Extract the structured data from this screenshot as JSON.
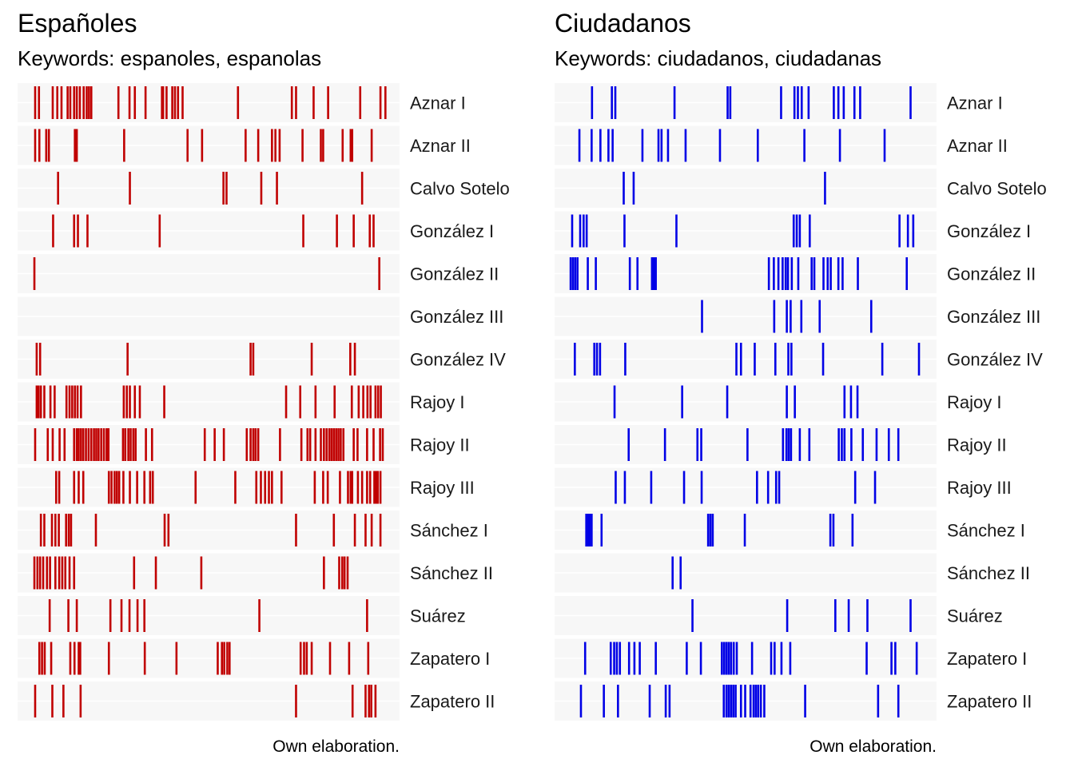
{
  "chart_data": [
    {
      "type": "barcode",
      "title": "Españoles",
      "subtitle": "Keywords: espanoles, espanolas",
      "caption": "Own elaboration.",
      "color": "#c00000",
      "xlim": [
        0,
        1
      ],
      "rows": [
        {
          "label": "Aznar I",
          "positions": [
            0.046,
            0.056,
            0.092,
            0.104,
            0.115,
            0.131,
            0.138,
            0.148,
            0.155,
            0.163,
            0.173,
            0.181,
            0.187,
            0.193,
            0.264,
            0.293,
            0.307,
            0.335,
            0.378,
            0.381,
            0.39,
            0.405,
            0.412,
            0.42,
            0.432,
            0.577,
            0.718,
            0.729,
            0.775,
            0.813,
            0.897,
            0.95,
            0.963
          ]
        },
        {
          "label": "Aznar II",
          "positions": [
            0.046,
            0.057,
            0.075,
            0.082,
            0.15,
            0.155,
            0.279,
            0.445,
            0.483,
            0.597,
            0.63,
            0.666,
            0.675,
            0.686,
            0.746,
            0.794,
            0.8,
            0.851,
            0.872,
            0.876,
            0.927
          ]
        },
        {
          "label": "Calvo Sotelo",
          "positions": [
            0.106,
            0.294,
            0.539,
            0.547,
            0.638,
            0.679,
            0.902
          ]
        },
        {
          "label": "González I",
          "positions": [
            0.093,
            0.148,
            0.158,
            0.183,
            0.372,
            0.748,
            0.836,
            0.88,
            0.922,
            0.932
          ]
        },
        {
          "label": "González II",
          "positions": [
            0.044,
            0.947
          ]
        },
        {
          "label": "González III",
          "positions": []
        },
        {
          "label": "González IV",
          "positions": [
            0.05,
            0.059,
            0.288,
            0.61,
            0.617,
            0.77,
            0.871,
            0.883
          ]
        },
        {
          "label": "Rajoy I",
          "positions": [
            0.05,
            0.055,
            0.061,
            0.07,
            0.086,
            0.097,
            0.128,
            0.136,
            0.143,
            0.15,
            0.157,
            0.166,
            0.278,
            0.286,
            0.294,
            0.307,
            0.32,
            0.384,
            0.703,
            0.74,
            0.78,
            0.83,
            0.875,
            0.893,
            0.905,
            0.916,
            0.924,
            0.937,
            0.944,
            0.951
          ]
        },
        {
          "label": "Rajoy II",
          "positions": [
            0.046,
            0.079,
            0.092,
            0.11,
            0.123,
            0.148,
            0.155,
            0.16,
            0.166,
            0.172,
            0.179,
            0.186,
            0.193,
            0.2,
            0.206,
            0.212,
            0.219,
            0.226,
            0.233,
            0.238,
            0.276,
            0.282,
            0.29,
            0.296,
            0.303,
            0.309,
            0.336,
            0.352,
            0.49,
            0.516,
            0.54,
            0.6,
            0.61,
            0.617,
            0.623,
            0.63,
            0.687,
            0.743,
            0.759,
            0.766,
            0.78,
            0.794,
            0.802,
            0.809,
            0.816,
            0.822,
            0.828,
            0.834,
            0.84,
            0.846,
            0.853,
            0.88,
            0.89,
            0.915,
            0.932,
            0.949,
            0.956
          ]
        },
        {
          "label": "Rajoy III",
          "positions": [
            0.101,
            0.109,
            0.148,
            0.16,
            0.172,
            0.239,
            0.246,
            0.254,
            0.26,
            0.266,
            0.277,
            0.294,
            0.313,
            0.332,
            0.347,
            0.354,
            0.466,
            0.57,
            0.625,
            0.637,
            0.648,
            0.658,
            0.666,
            0.691,
            0.778,
            0.8,
            0.812,
            0.844,
            0.865,
            0.872,
            0.876,
            0.891,
            0.902,
            0.915,
            0.923,
            0.934,
            0.938,
            0.943,
            0.95
          ]
        },
        {
          "label": "Sánchez I",
          "positions": [
            0.061,
            0.07,
            0.09,
            0.099,
            0.108,
            0.127,
            0.134,
            0.14,
            0.205,
            0.385,
            0.395,
            0.729,
            0.828,
            0.883,
            0.911,
            0.927,
            0.95
          ]
        },
        {
          "label": "Sánchez II",
          "positions": [
            0.044,
            0.052,
            0.059,
            0.067,
            0.077,
            0.085,
            0.099,
            0.109,
            0.117,
            0.125,
            0.136,
            0.148,
            0.305,
            0.362,
            0.481,
            0.802,
            0.842,
            0.85,
            0.856,
            0.864
          ]
        },
        {
          "label": "Suárez",
          "positions": [
            0.084,
            0.133,
            0.155,
            0.243,
            0.272,
            0.293,
            0.314,
            0.332,
            0.633,
            0.915
          ]
        },
        {
          "label": "Zapatero I",
          "positions": [
            0.057,
            0.064,
            0.071,
            0.088,
            0.138,
            0.149,
            0.16,
            0.164,
            0.239,
            0.333,
            0.416,
            0.524,
            0.535,
            0.541,
            0.549,
            0.555,
            0.741,
            0.75,
            0.757,
            0.77,
            0.818,
            0.868,
            0.918
          ]
        },
        {
          "label": "Zapatero II",
          "positions": [
            0.046,
            0.091,
            0.12,
            0.165,
            0.729,
            0.877,
            0.911,
            0.92,
            0.926,
            0.937
          ]
        }
      ]
    },
    {
      "type": "barcode",
      "title": "Ciudadanos",
      "subtitle": "Keywords: ciudadanos, ciudadanas",
      "caption": "Own elaboration.",
      "color": "#0000e6",
      "xlim": [
        0,
        1
      ],
      "rows": [
        {
          "label": "Aznar I",
          "positions": [
            0.098,
            0.15,
            0.159,
            0.314,
            0.453,
            0.46,
            0.593,
            0.628,
            0.637,
            0.647,
            0.665,
            0.731,
            0.743,
            0.757,
            0.785,
            0.8,
            0.932
          ]
        },
        {
          "label": "Aznar II",
          "positions": [
            0.065,
            0.097,
            0.12,
            0.141,
            0.152,
            0.23,
            0.272,
            0.28,
            0.297,
            0.343,
            0.433,
            0.532,
            0.654,
            0.747,
            0.864
          ]
        },
        {
          "label": "Calvo Sotelo",
          "positions": [
            0.181,
            0.207,
            0.708
          ]
        },
        {
          "label": "González I",
          "positions": [
            0.046,
            0.067,
            0.076,
            0.084,
            0.183,
            0.319,
            0.626,
            0.634,
            0.642,
            0.668,
            0.903,
            0.925,
            0.939
          ]
        },
        {
          "label": "González II",
          "positions": [
            0.042,
            0.048,
            0.054,
            0.06,
            0.087,
            0.108,
            0.197,
            0.217,
            0.255,
            0.26,
            0.265,
            0.561,
            0.574,
            0.586,
            0.597,
            0.605,
            0.611,
            0.621,
            0.638,
            0.673,
            0.68,
            0.704,
            0.715,
            0.723,
            0.743,
            0.754,
            0.794,
            0.922
          ]
        },
        {
          "label": "González III",
          "positions": [
            0.386,
            0.575,
            0.608,
            0.618,
            0.646,
            0.694,
            0.829
          ]
        },
        {
          "label": "González IV",
          "positions": [
            0.053,
            0.104,
            0.111,
            0.119,
            0.185,
            0.476,
            0.488,
            0.524,
            0.578,
            0.612,
            0.62,
            0.703,
            0.858,
            0.954
          ]
        },
        {
          "label": "Rajoy I",
          "positions": [
            0.157,
            0.334,
            0.452,
            0.608,
            0.629,
            0.759,
            0.776,
            0.793
          ]
        },
        {
          "label": "Rajoy II",
          "positions": [
            0.194,
            0.289,
            0.374,
            0.384,
            0.505,
            0.598,
            0.607,
            0.613,
            0.619,
            0.642,
            0.667,
            0.744,
            0.752,
            0.759,
            0.777,
            0.807,
            0.843,
            0.875,
            0.9
          ]
        },
        {
          "label": "Rajoy III",
          "positions": [
            0.16,
            0.184,
            0.253,
            0.339,
            0.385,
            0.53,
            0.559,
            0.58,
            0.588,
            0.787,
            0.839
          ]
        },
        {
          "label": "Sánchez I",
          "positions": [
            0.083,
            0.088,
            0.092,
            0.097,
            0.123,
            0.402,
            0.408,
            0.414,
            0.498,
            0.722,
            0.73,
            0.78
          ]
        },
        {
          "label": "Sánchez II",
          "positions": [
            0.309,
            0.33
          ]
        },
        {
          "label": "Suárez",
          "positions": [
            0.361,
            0.609,
            0.735,
            0.77,
            0.819,
            0.932
          ]
        },
        {
          "label": "Zapatero I",
          "positions": [
            0.08,
            0.147,
            0.156,
            0.163,
            0.171,
            0.195,
            0.209,
            0.223,
            0.265,
            0.346,
            0.383,
            0.438,
            0.444,
            0.45,
            0.456,
            0.462,
            0.469,
            0.477,
            0.517,
            0.567,
            0.576,
            0.594,
            0.617,
            0.817,
            0.882,
            0.892,
            0.948
          ]
        },
        {
          "label": "Zapatero II",
          "positions": [
            0.069,
            0.129,
            0.166,
            0.249,
            0.291,
            0.301,
            0.443,
            0.45,
            0.456,
            0.462,
            0.468,
            0.474,
            0.488,
            0.499,
            0.513,
            0.521,
            0.527,
            0.533,
            0.54,
            0.549,
            0.656,
            0.847,
            0.9
          ]
        }
      ]
    }
  ]
}
